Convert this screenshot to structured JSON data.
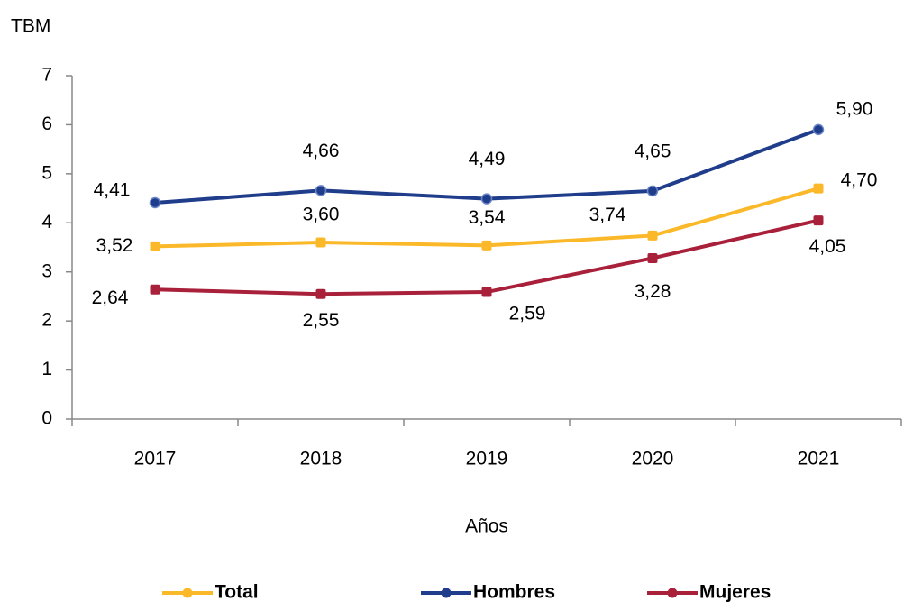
{
  "chart_data": {
    "type": "line",
    "y_label": "TBM",
    "x_label": "Años",
    "categories": [
      "2017",
      "2018",
      "2019",
      "2020",
      "2021"
    ],
    "series": [
      {
        "name": "Total",
        "color": "#fbb829",
        "values": [
          3.52,
          3.6,
          3.54,
          3.74,
          4.7
        ],
        "value_labels": [
          "3,52",
          "3,60",
          "3,54",
          "3,74",
          "4,70"
        ]
      },
      {
        "name": "Hombres",
        "color": "#1f3d8a",
        "values": [
          4.41,
          4.66,
          4.49,
          4.65,
          5.9
        ],
        "value_labels": [
          "4,41",
          "4,66",
          "4,49",
          "4,65",
          "5,90"
        ]
      },
      {
        "name": "Mujeres",
        "color": "#a8203a",
        "values": [
          2.64,
          2.55,
          2.59,
          3.28,
          4.05
        ],
        "value_labels": [
          "2,64",
          "2,55",
          "2,59",
          "3,28",
          "4,05"
        ]
      }
    ],
    "ylim": [
      0,
      7
    ],
    "yticks": [
      0,
      1,
      2,
      3,
      4,
      5,
      6,
      7
    ]
  }
}
